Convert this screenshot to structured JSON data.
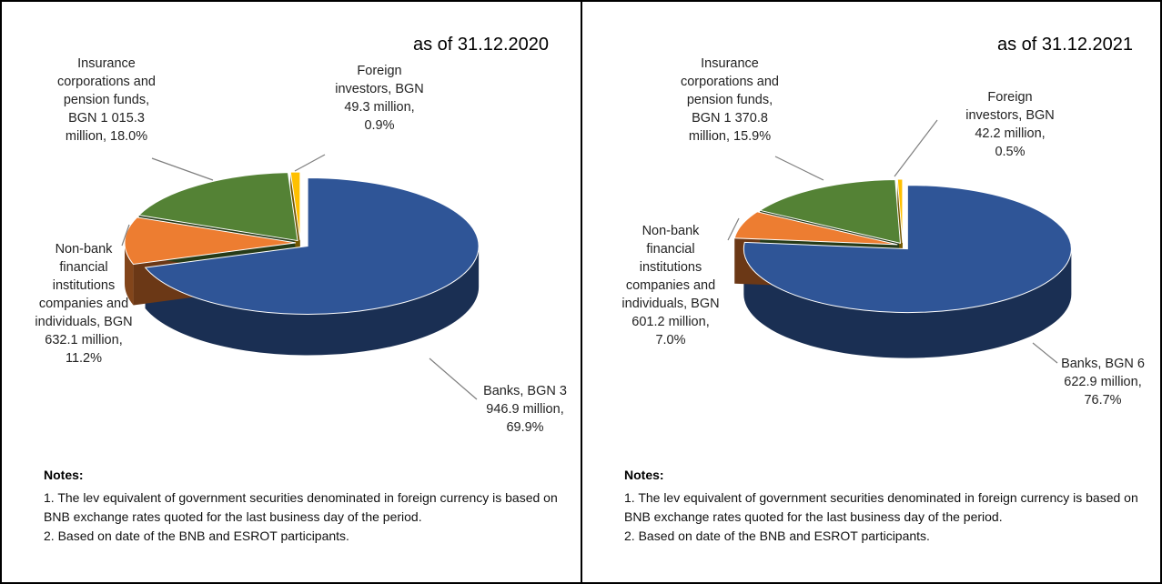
{
  "chart_data": [
    {
      "type": "pie",
      "title": "as of 31.12.2020",
      "categories": [
        "Banks, BGN 3 946.9 million,",
        "Non-bank financial institutions companies and individuals, BGN 632.1 million,",
        "Insurance corporations and pension funds, BGN 1 015.3 million,",
        "Foreign investors, BGN 49.3 million,"
      ],
      "values": [
        69.9,
        11.2,
        18.0,
        0.9
      ],
      "value_labels": [
        "69.9%",
        "11.2%",
        "18.0%",
        "0.9%"
      ],
      "colors": [
        "#2f5597",
        "#ed7d31",
        "#548235",
        "#ffc000"
      ],
      "notes_title": "Notes:",
      "notes": [
        "1. The lev equivalent of government securities denominated in foreign currency is based on BNB exchange rates quoted for the last business day of the period.",
        "2. Based on date of the BNB and ESROT participants."
      ]
    },
    {
      "type": "pie",
      "title": "as of 31.12.2021",
      "categories": [
        "Banks, BGN 6 622.9 million,",
        "Non-bank financial institutions companies and individuals, BGN 601.2 million,",
        "Insurance corporations and pension funds, BGN 1 370.8 million,",
        "Foreign investors, BGN 42.2 million,"
      ],
      "values": [
        76.7,
        7.0,
        15.9,
        0.5
      ],
      "value_labels": [
        "76.7%",
        "7.0%",
        "15.9%",
        "0.5%"
      ],
      "colors": [
        "#2f5597",
        "#ed7d31",
        "#548235",
        "#ffc000"
      ],
      "notes_title": "Notes:",
      "notes": [
        "1. The lev equivalent of government securities denominated in foreign currency is based on BNB exchange rates quoted for the last business day of the period.",
        "2. Based on date of the BNB and ESROT participants."
      ]
    }
  ]
}
